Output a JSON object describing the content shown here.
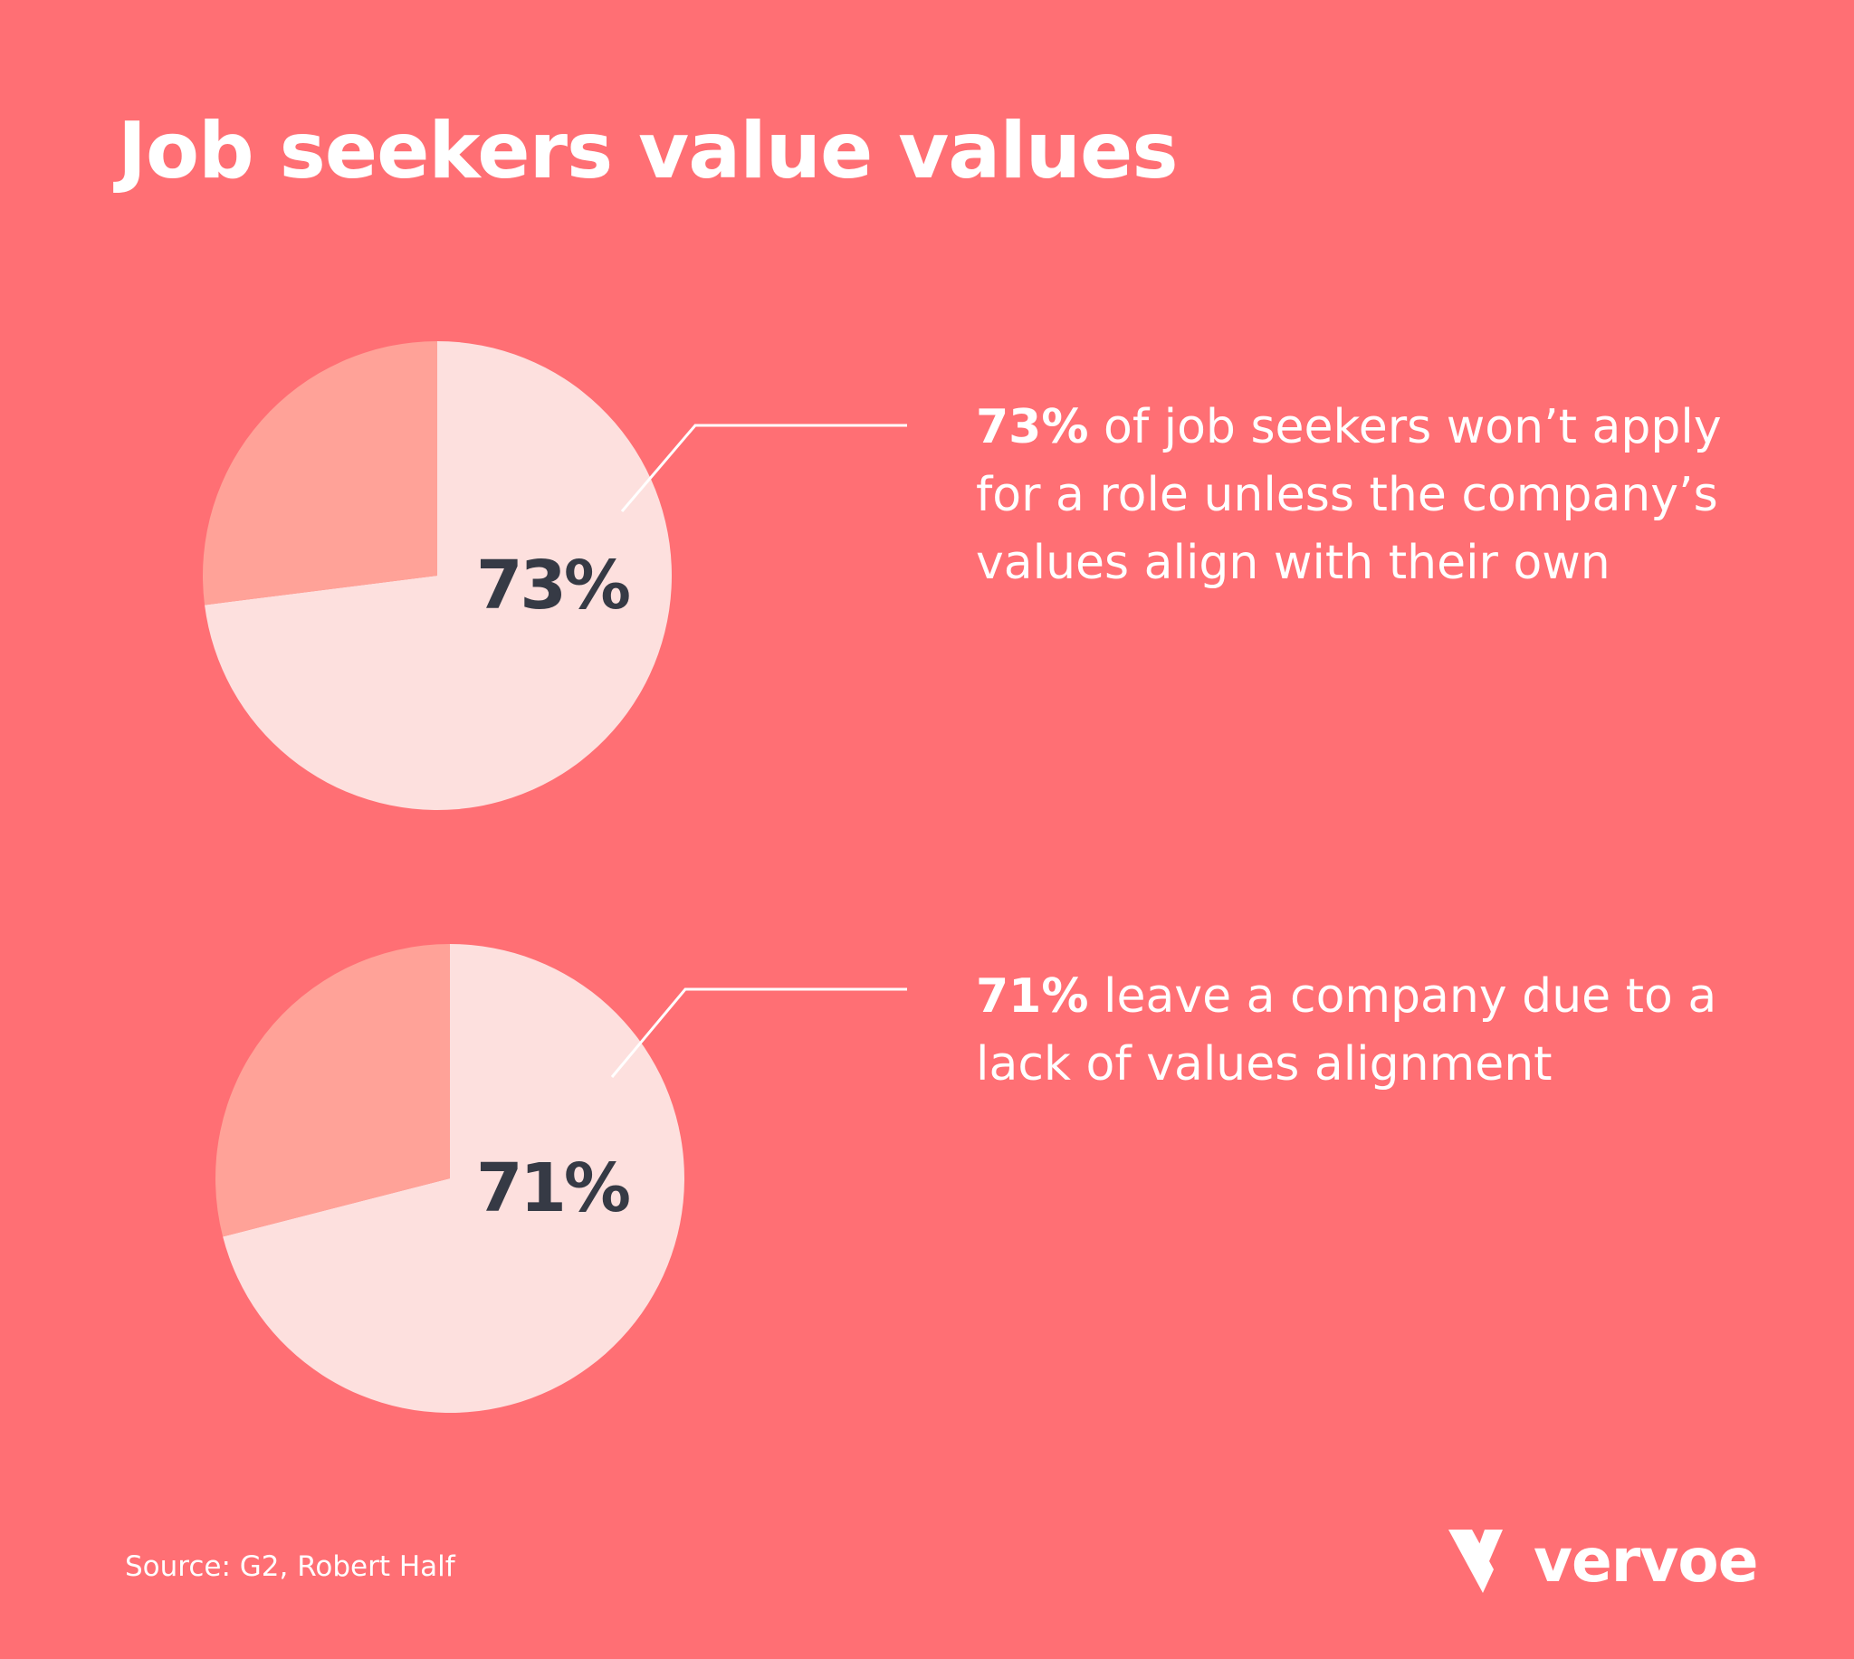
{
  "title": "Job seekers value values",
  "colors": {
    "background": "#ff6f74",
    "pie_main": "#fde0de",
    "pie_rest": "#ffa298",
    "label": "#363a45",
    "text": "#ffffff"
  },
  "chart_data": [
    {
      "type": "pie",
      "values": [
        73,
        27
      ],
      "unit": "%",
      "data_label": "73%",
      "callout": {
        "highlight": "73%",
        "text": " of job seekers won’t apply for a role unless the company’s values align with their own"
      }
    },
    {
      "type": "pie",
      "values": [
        71,
        29
      ],
      "unit": "%",
      "data_label": "71%",
      "callout": {
        "highlight": "71%",
        "text": " leave a company due to a lack of values alignment"
      }
    }
  ],
  "source": "Source: G2, Robert Half",
  "logo": {
    "wordmark": "vervoe",
    "icon": "vervoe-v-logo-icon"
  }
}
